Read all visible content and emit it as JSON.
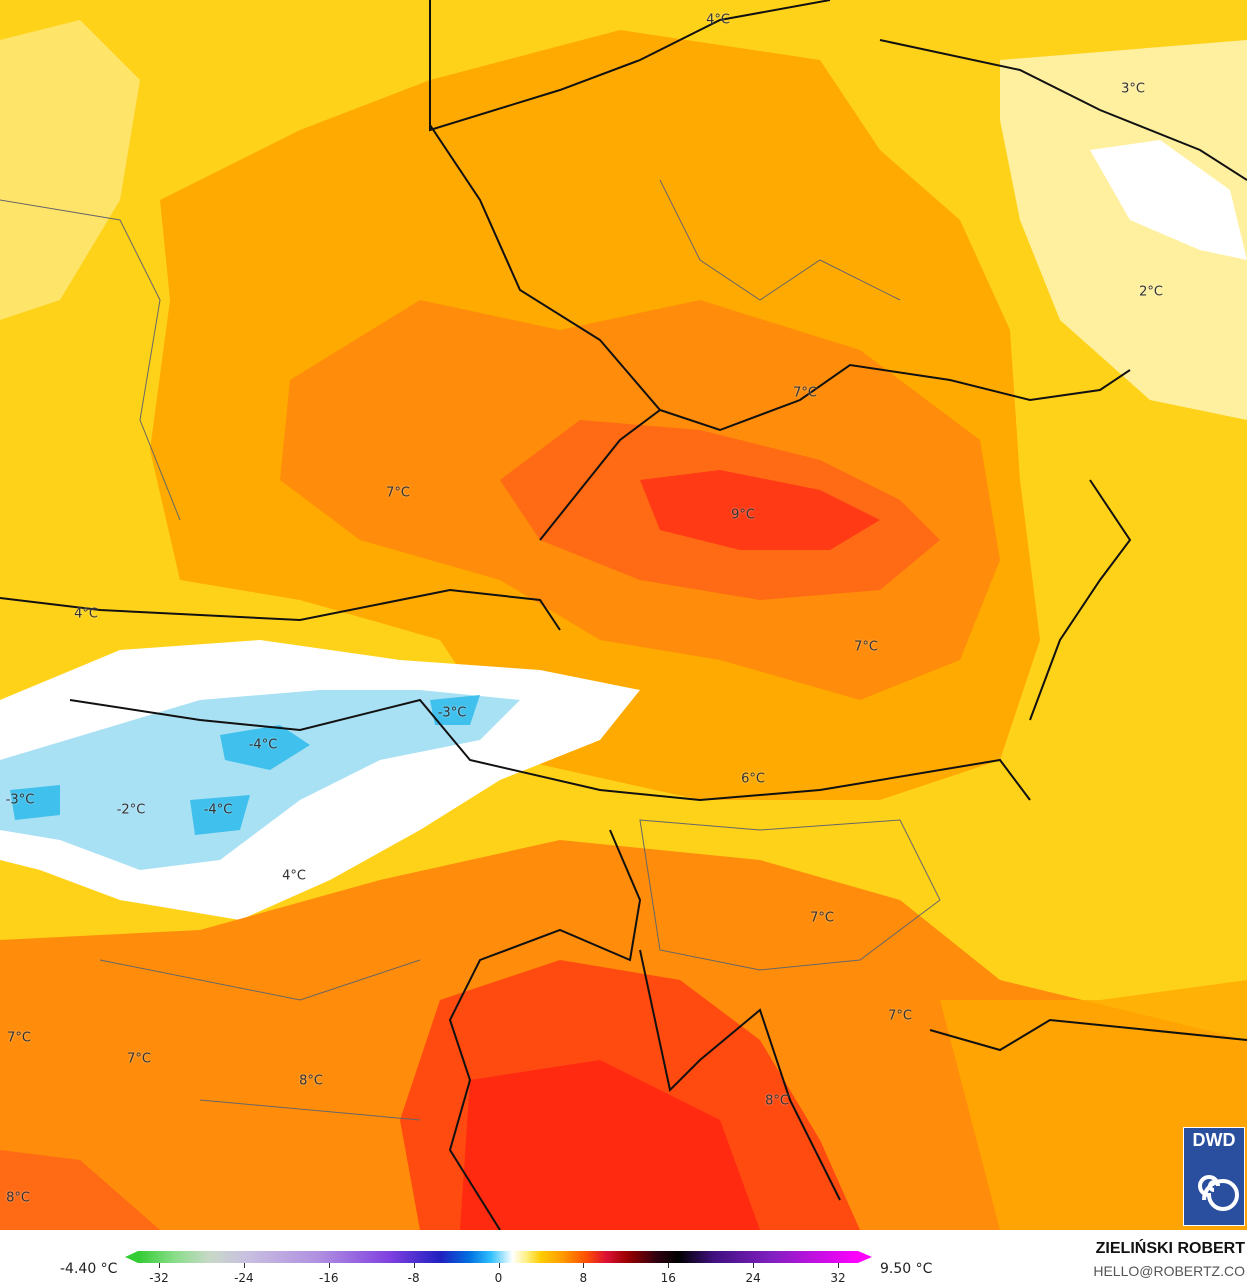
{
  "map": {
    "labels": [
      "4°C",
      "3°C",
      "2°C",
      "7°C",
      "7°C",
      "9°C",
      "4°C",
      "7°C",
      "-3°C",
      "-4°C",
      "6°C",
      "-3°C",
      "-2°C",
      "-4°C",
      "4°C",
      "7°C",
      "7°C",
      "7°C",
      "7°C",
      "8°C",
      "8°C",
      "8°C"
    ],
    "colors": {
      "light_yellow": "#fff0a0",
      "yellow": "#ffd21a",
      "orange": "#ffaa00",
      "dark_orange": "#ff7a10",
      "red_orange": "#ff4a10",
      "red": "#ff2a10",
      "ice_blue": "#a8e0f4",
      "blue": "#40c0ec",
      "white": "#ffffff"
    }
  },
  "legend": {
    "min_label": "-4.40 °C",
    "max_label": "9.50 °C",
    "ticks": [
      "-32",
      "-24",
      "-16",
      "-8",
      "0",
      "8",
      "16",
      "24",
      "32"
    ],
    "range": [
      -32,
      32
    ],
    "unit": "°C"
  },
  "credit": {
    "author": "ZIELIŃSKI ROBERT",
    "email": "HELLO@ROBERTZ.CO",
    "logo_text": "DWD"
  }
}
